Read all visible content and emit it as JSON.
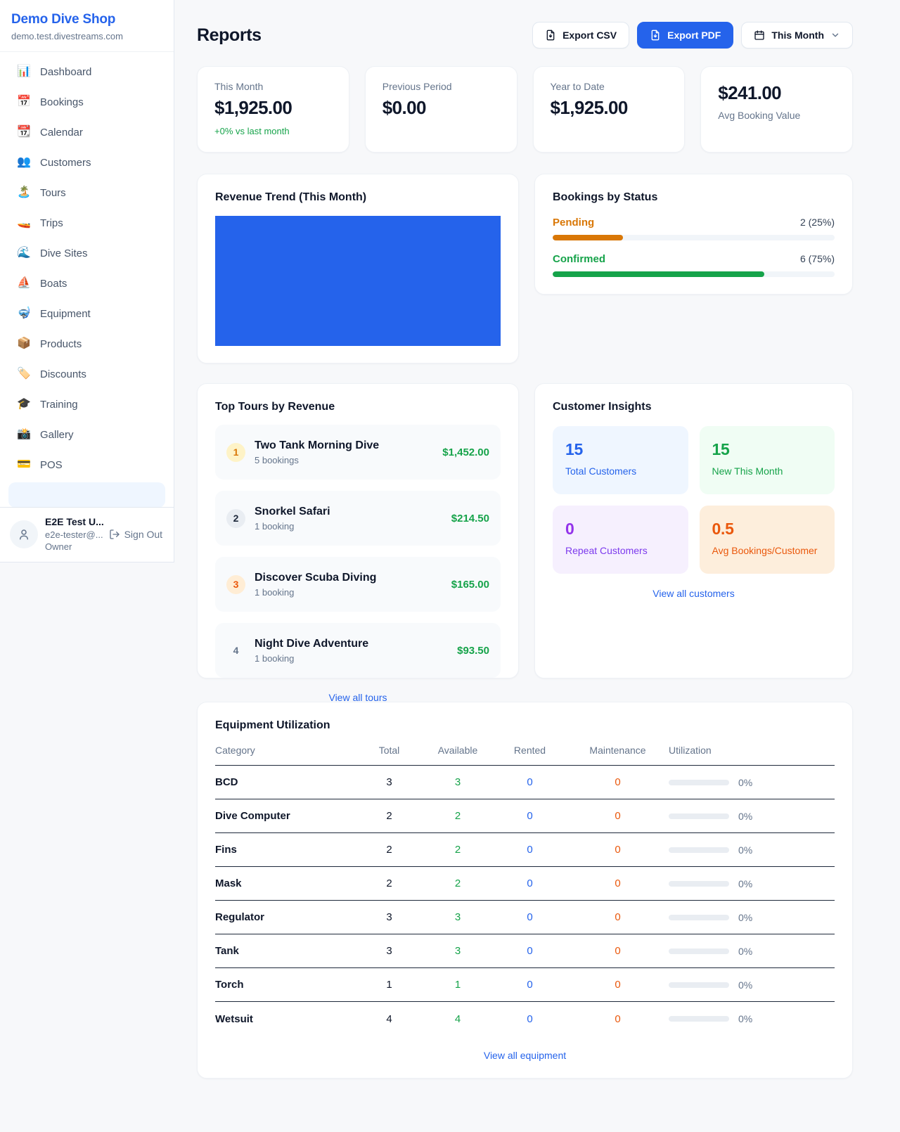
{
  "colors": {
    "accent": "#2563eb",
    "green": "#16a34a",
    "pending_orange": "#d97706",
    "deep_orange": "#ea580c",
    "purple": "#9333ea"
  },
  "sidebar": {
    "title": "Demo Dive Shop",
    "subtitle": "demo.test.divestreams.com",
    "items": [
      {
        "label": "Dashboard",
        "icon": "📊"
      },
      {
        "label": "Bookings",
        "icon": "📅"
      },
      {
        "label": "Calendar",
        "icon": "📆"
      },
      {
        "label": "Customers",
        "icon": "👥"
      },
      {
        "label": "Tours",
        "icon": "🏝️"
      },
      {
        "label": "Trips",
        "icon": "🚤"
      },
      {
        "label": "Dive Sites",
        "icon": "🌊"
      },
      {
        "label": "Boats",
        "icon": "⛵"
      },
      {
        "label": "Equipment",
        "icon": "🤿"
      },
      {
        "label": "Products",
        "icon": "📦"
      },
      {
        "label": "Discounts",
        "icon": "🏷️"
      },
      {
        "label": "Training",
        "icon": "🎓"
      },
      {
        "label": "Gallery",
        "icon": "📸"
      },
      {
        "label": "POS",
        "icon": "💳"
      }
    ],
    "user": {
      "name": "E2E Test U...",
      "email": "e2e-tester@...",
      "role": "Owner",
      "sign_out": "Sign Out"
    }
  },
  "header": {
    "title": "Reports",
    "export_csv": "Export CSV",
    "export_pdf": "Export PDF",
    "period": "This Month"
  },
  "stats": [
    {
      "label": "This Month",
      "value": "$1,925.00",
      "delta": "+0% vs last month"
    },
    {
      "label": "Previous Period",
      "value": "$0.00"
    },
    {
      "label": "Year to Date",
      "value": "$1,925.00"
    },
    {
      "label": "Avg Booking Value",
      "value": "$241.00"
    }
  ],
  "revenue_trend": {
    "title": "Revenue Trend (This Month)",
    "chart_color": "#2563eb"
  },
  "bookings_by_status": {
    "title": "Bookings by Status",
    "rows": [
      {
        "label": "Pending",
        "value": "2 (25%)",
        "percent": 25,
        "color": "#d97706"
      },
      {
        "label": "Confirmed",
        "value": "6 (75%)",
        "percent": 75,
        "color": "#16a34a"
      }
    ]
  },
  "top_tours": {
    "title": "Top Tours by Revenue",
    "link": "View all tours",
    "rows": [
      {
        "rank": "1",
        "name": "Two Tank Morning Dive",
        "bookings": "5 bookings",
        "amount": "$1,452.00"
      },
      {
        "rank": "2",
        "name": "Snorkel Safari",
        "bookings": "1 booking",
        "amount": "$214.50"
      },
      {
        "rank": "3",
        "name": "Discover Scuba Diving",
        "bookings": "1 booking",
        "amount": "$165.00"
      },
      {
        "rank": "4",
        "name": "Night Dive Adventure",
        "bookings": "1 booking",
        "amount": "$93.50"
      }
    ]
  },
  "customer_insights": {
    "title": "Customer Insights",
    "link": "View all customers",
    "cards": [
      {
        "value": "15",
        "label": "Total Customers"
      },
      {
        "value": "15",
        "label": "New This Month"
      },
      {
        "value": "0",
        "label": "Repeat Customers"
      },
      {
        "value": "0.5",
        "label": "Avg Bookings/Customer"
      }
    ]
  },
  "equipment": {
    "title": "Equipment Utilization",
    "link": "View all equipment",
    "columns": [
      "Category",
      "Total",
      "Available",
      "Rented",
      "Maintenance",
      "Utilization"
    ],
    "rows": [
      {
        "category": "BCD",
        "total": "3",
        "available": "3",
        "rented": "0",
        "maintenance": "0",
        "utilization": "0%",
        "percent": 0
      },
      {
        "category": "Dive Computer",
        "total": "2",
        "available": "2",
        "rented": "0",
        "maintenance": "0",
        "utilization": "0%",
        "percent": 0
      },
      {
        "category": "Fins",
        "total": "2",
        "available": "2",
        "rented": "0",
        "maintenance": "0",
        "utilization": "0%",
        "percent": 0
      },
      {
        "category": "Mask",
        "total": "2",
        "available": "2",
        "rented": "0",
        "maintenance": "0",
        "utilization": "0%",
        "percent": 0
      },
      {
        "category": "Regulator",
        "total": "3",
        "available": "3",
        "rented": "0",
        "maintenance": "0",
        "utilization": "0%",
        "percent": 0
      },
      {
        "category": "Tank",
        "total": "3",
        "available": "3",
        "rented": "0",
        "maintenance": "0",
        "utilization": "0%",
        "percent": 0
      },
      {
        "category": "Torch",
        "total": "1",
        "available": "1",
        "rented": "0",
        "maintenance": "0",
        "utilization": "0%",
        "percent": 0
      },
      {
        "category": "Wetsuit",
        "total": "4",
        "available": "4",
        "rented": "0",
        "maintenance": "0",
        "utilization": "0%",
        "percent": 0
      }
    ]
  }
}
